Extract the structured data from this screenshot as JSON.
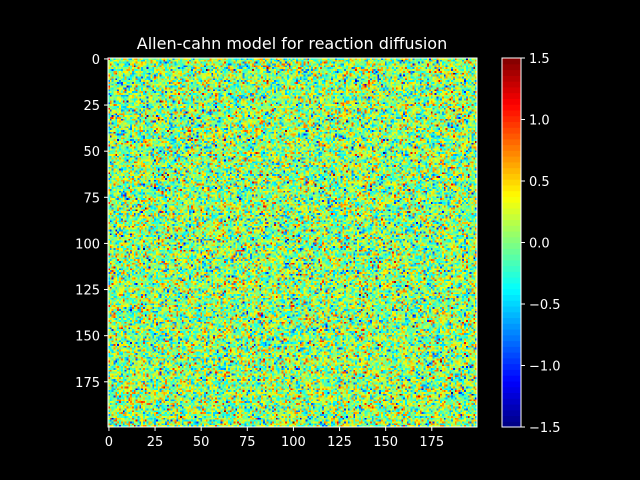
{
  "chart_data": {
    "type": "heatmap",
    "title": "Allen-cahn model for reaction diffusion",
    "xlabel": "",
    "ylabel": "",
    "grid_size": [
      200,
      200
    ],
    "xlim": [
      0,
      199
    ],
    "ylim": [
      199,
      0
    ],
    "x_ticks": [
      "0",
      "25",
      "50",
      "75",
      "100",
      "125",
      "150",
      "175"
    ],
    "y_ticks": [
      "0",
      "25",
      "50",
      "75",
      "100",
      "125",
      "150",
      "175"
    ],
    "colormap": "jet",
    "value_distribution": "random noise, centered near 0.05, most values between -1.0 and 1.0",
    "colorbar": {
      "range": [
        -1.5,
        1.5
      ],
      "ticks": [
        "1.5",
        "1.0",
        "0.5",
        "0.0",
        "−0.5",
        "−1.0",
        "−1.5"
      ],
      "tick_values": [
        1.5,
        1.0,
        0.5,
        0.0,
        -0.5,
        -1.0,
        -1.5
      ]
    },
    "grid": false,
    "background": "#000000",
    "text_color": "#ffffff"
  }
}
